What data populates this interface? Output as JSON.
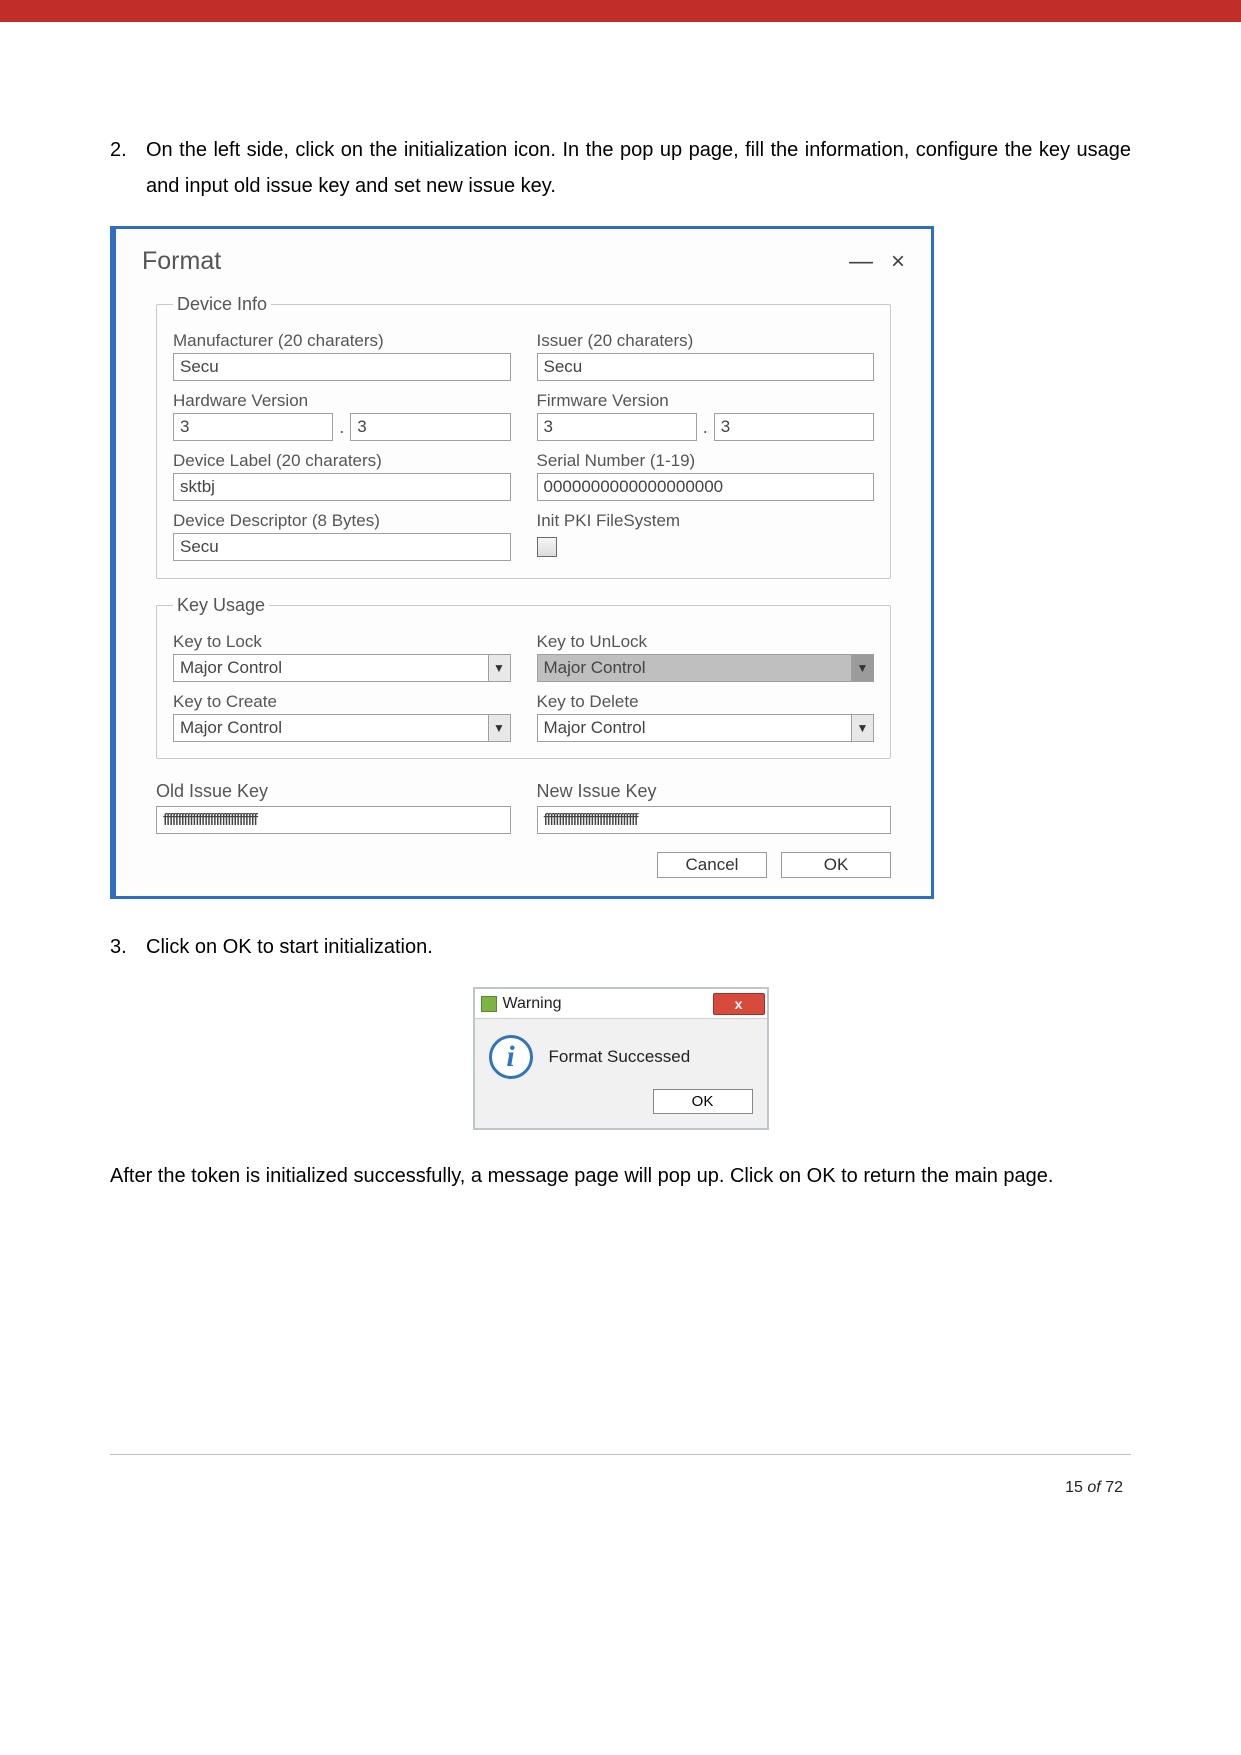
{
  "colors": {
    "topbar": "#c12e2a",
    "window_border": "#2f6fc1",
    "text_muted": "#555555",
    "input_border": "#a0a0a0",
    "disabled_bg": "#bfbfbf",
    "close_btn": "#d84a3c",
    "info_icon": "#2f74c0"
  },
  "step2": {
    "num": "2.",
    "text": "On the left side, click on the initialization icon. In the pop up page, fill the information, configure the key usage and input old issue key and set new issue key."
  },
  "format_window": {
    "title": "Format",
    "minimize": "—",
    "close": "×",
    "device_info": {
      "legend": "Device Info",
      "manufacturer": {
        "label": "Manufacturer (20 charaters)",
        "value": "Secu"
      },
      "issuer": {
        "label": "Issuer (20 charaters)",
        "value": "Secu"
      },
      "hardware_version": {
        "label": "Hardware Version",
        "major": "3",
        "minor": "3"
      },
      "firmware_version": {
        "label": "Firmware Version",
        "major": "3",
        "minor": "3"
      },
      "device_label": {
        "label": "Device Label (20 charaters)",
        "value": "sktbj"
      },
      "serial_number": {
        "label": "Serial Number (1-19)",
        "value": "0000000000000000000"
      },
      "device_descriptor": {
        "label": "Device Descriptor (8 Bytes)",
        "value": "Secu"
      },
      "init_pki": {
        "label": "Init PKI FileSystem",
        "checked": false
      }
    },
    "key_usage": {
      "legend": "Key Usage",
      "lock": {
        "label": "Key to Lock",
        "value": "Major Control",
        "disabled": false
      },
      "unlock": {
        "label": "Key to UnLock",
        "value": "Major Control",
        "disabled": true
      },
      "create": {
        "label": "Key to Create",
        "value": "Major Control",
        "disabled": false
      },
      "delete": {
        "label": "Key to Delete",
        "value": "Major Control",
        "disabled": false
      }
    },
    "old_issue_key": {
      "label": "Old Issue Key",
      "value": "ffffffffffffffffffffffffffffffff"
    },
    "new_issue_key": {
      "label": "New Issue Key",
      "value": "ffffffffffffffffffffffffffffffff"
    },
    "buttons": {
      "cancel": "Cancel",
      "ok": "OK"
    }
  },
  "step3": {
    "num": "3.",
    "text": "Click on OK to start initialization."
  },
  "warning": {
    "title": "Warning",
    "message": "Format Successed",
    "ok": "OK",
    "close": "x"
  },
  "after_text": "After the token is initialized successfully, a message page will pop up. Click on OK to return the main page.",
  "footer": {
    "page": "15",
    "of": "of",
    "total": "72"
  }
}
